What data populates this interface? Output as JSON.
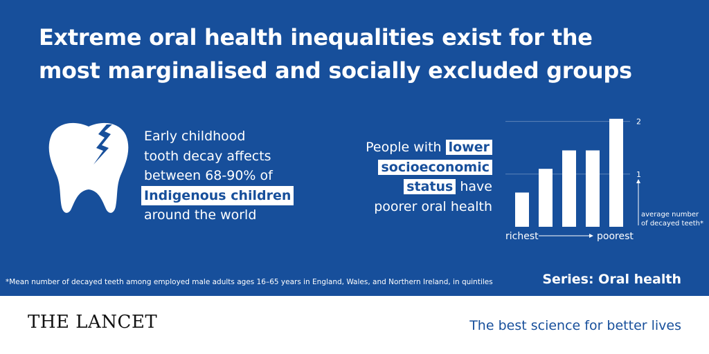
{
  "header": {
    "title_line1": "Extreme oral health inequalities exist for the",
    "title_line2": "most marginalised and socially excluded groups"
  },
  "tooth_stat": {
    "icon": "broken-tooth-icon",
    "line1": "Early childhood",
    "line2": "tooth decay affects",
    "line3": "between 68-90% of",
    "highlight": "Indigenous children",
    "line5": "around the world"
  },
  "ses_stat": {
    "prefix": "People with",
    "highlight1": "lower",
    "highlight2": "socioeconomic",
    "highlight3": "status",
    "suffix": "have",
    "line4": "poorer oral health"
  },
  "chart_data": {
    "type": "bar",
    "categories": [
      "",
      "",
      "",
      "",
      ""
    ],
    "values": [
      0.65,
      1.1,
      1.45,
      1.45,
      2.05
    ],
    "ylim": [
      0,
      2.1
    ],
    "yticks": [
      1,
      2
    ],
    "ytick_labels": [
      "1",
      "2"
    ],
    "ylabel": "average number of decayed teeth*",
    "ylabel_line1": "average number",
    "ylabel_line2": "of decayed teeth*",
    "x_start_label": "richest",
    "x_end_label": "poorest",
    "grid": true
  },
  "footnote": "*Mean number of decayed teeth among employed male adults ages 16–65 years in England, Wales, and Northern Ireland, in quintiles",
  "series_label": "Series: Oral health",
  "footer": {
    "logo": "THE LANCET",
    "tagline": "The best science for better lives"
  },
  "colors": {
    "panel": "#174f9b",
    "text_on_panel": "#ffffff",
    "footer_background": "#ffffff",
    "tagline": "#174f9b"
  }
}
